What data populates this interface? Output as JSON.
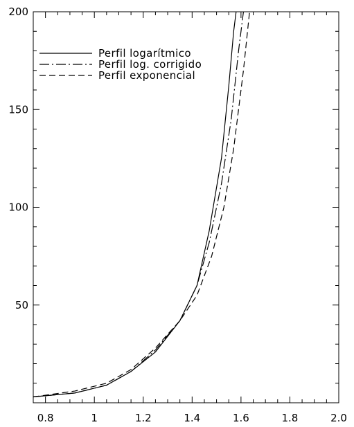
{
  "chart_data": {
    "type": "line",
    "title": "",
    "xlabel": "",
    "ylabel": "",
    "xlim": [
      0.75,
      2.0
    ],
    "ylim": [
      0,
      200
    ],
    "xticks": [
      0.8,
      1.0,
      1.2,
      1.4,
      1.6,
      1.8,
      2.0
    ],
    "xtick_labels": [
      "0.8",
      "1",
      "1.2",
      "1.4",
      "1.6",
      "1.8",
      "2.0"
    ],
    "yticks": [
      50,
      100,
      150,
      200
    ],
    "ytick_labels": [
      "50",
      "100",
      "150",
      "200"
    ],
    "grid": false,
    "legend_position": "top-left",
    "series": [
      {
        "name": "Perfil logarítmico",
        "dash": "solid",
        "color": "#000000",
        "x": [
          0.75,
          0.92,
          1.05,
          1.15,
          1.25,
          1.35,
          1.42,
          1.47,
          1.52,
          1.55,
          1.57,
          1.58
        ],
        "y": [
          3,
          5,
          9,
          16,
          26,
          42,
          60,
          88,
          125,
          162,
          190,
          200
        ]
      },
      {
        "name": "Perfil log. corrigido",
        "dash": "dashdot",
        "color": "#000000",
        "x": [
          0.75,
          0.92,
          1.05,
          1.15,
          1.25,
          1.35,
          1.42,
          1.47,
          1.52,
          1.56,
          1.59,
          1.61
        ],
        "y": [
          3,
          5,
          9,
          16,
          27,
          42,
          60,
          82,
          112,
          145,
          180,
          200
        ]
      },
      {
        "name": "Perfil exponencial",
        "dash": "dashed",
        "color": "#000000",
        "x": [
          0.75,
          0.92,
          1.05,
          1.15,
          1.25,
          1.35,
          1.42,
          1.48,
          1.53,
          1.57,
          1.61,
          1.635
        ],
        "y": [
          3,
          6,
          10,
          17,
          28,
          42,
          55,
          75,
          100,
          130,
          170,
          200
        ]
      }
    ]
  }
}
